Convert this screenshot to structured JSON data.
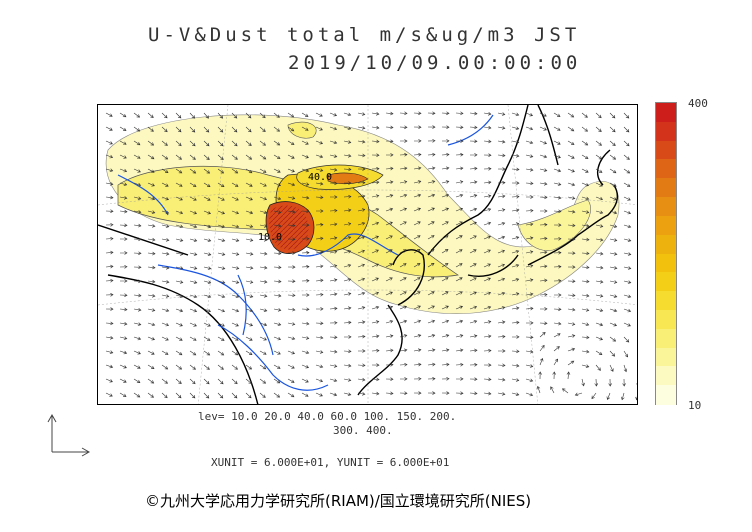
{
  "title": {
    "line1": "U-V&Dust total m/s&ug/m3 JST",
    "line2": "2019/10/09.00:00:00"
  },
  "colorbar": {
    "max_label": "400",
    "min_label": "10",
    "colors": [
      "#fdfde0",
      "#fcfac0",
      "#fbf59a",
      "#f9ef77",
      "#f8e752",
      "#f6dc2f",
      "#f4cf17",
      "#f1c10e",
      "#eeb20f",
      "#eba110",
      "#e78f12",
      "#e37b14",
      "#de6416",
      "#d84b18",
      "#d3331a",
      "#ce1e1c"
    ]
  },
  "levels": {
    "line1": "lev= 10.0 20.0 40.0 60.0 100. 150. 200.",
    "line2": "300. 400."
  },
  "units": "XUNIT = 6.000E+01, YUNIT = 6.000E+01",
  "contour_labels": [
    "10.0",
    "40.0"
  ],
  "copyright": "©九州大学応用力学研究所(RIAM)/国立環境研究所(NIES)"
}
